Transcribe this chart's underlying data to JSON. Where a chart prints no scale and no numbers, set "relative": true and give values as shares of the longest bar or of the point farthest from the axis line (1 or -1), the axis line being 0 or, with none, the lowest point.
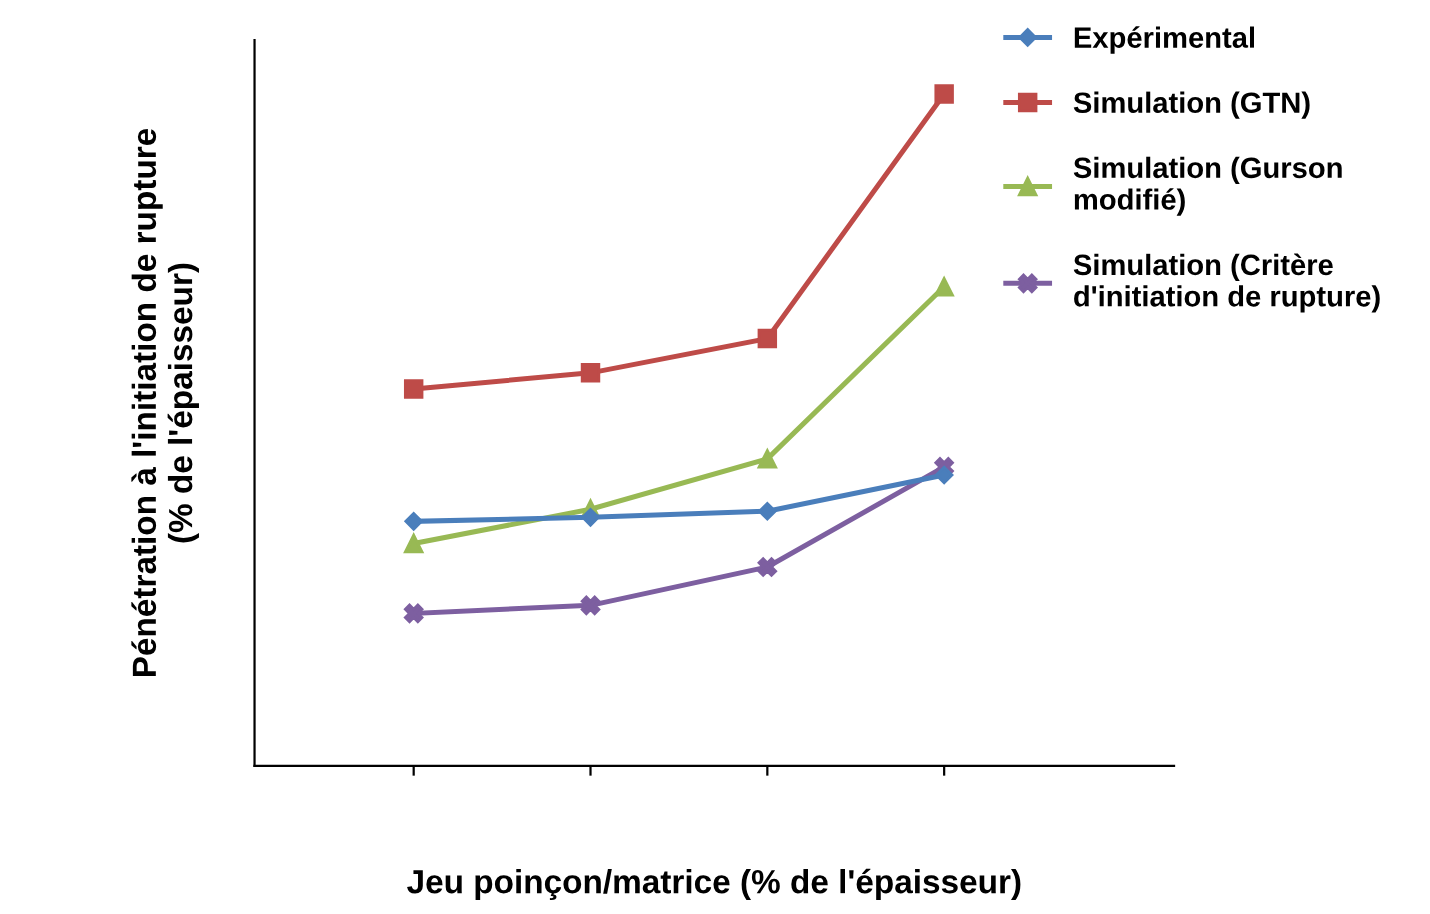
{
  "chart_data": {
    "type": "line",
    "relative": true,
    "xlabel": "Jeu poinçon/matrice (% de l'épaisseur)",
    "ylabel": "Pénétration à l'initiation de rupture\n(% de l'épaisseur)",
    "categories": [
      null,
      null,
      null,
      null
    ],
    "legend": "right",
    "grid": false,
    "series": [
      {
        "name": "Expérimental",
        "color": "#4a7ebb",
        "marker": "diamond",
        "values": [
          0.364,
          0.37,
          0.379,
          0.433
        ]
      },
      {
        "name": "Simulation (GTN)",
        "color": "#be4b48",
        "marker": "square",
        "values": [
          0.561,
          0.585,
          0.636,
          1
        ]
      },
      {
        "name": "Simulation (Gurson\nmodifié)",
        "color": "#98b954",
        "marker": "triangle",
        "values": [
          0.331,
          0.382,
          0.457,
          0.713
        ]
      },
      {
        "name": "Simulation (Critère\nd'initiation de rupture)",
        "color": "#7d5fa0",
        "marker": "cross",
        "values": [
          0.227,
          0.239,
          0.296,
          0.445
        ]
      }
    ]
  }
}
